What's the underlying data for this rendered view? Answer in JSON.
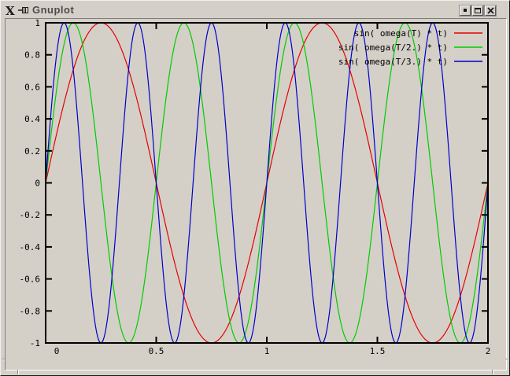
{
  "window": {
    "title": "Gnuplot",
    "controls": [
      {
        "name": "minimize"
      },
      {
        "name": "maximize"
      },
      {
        "name": "close"
      }
    ]
  },
  "chart_data": {
    "type": "line",
    "title": "",
    "xlabel": "",
    "ylabel": "",
    "x_axis": {
      "min": 0,
      "max": 2,
      "ticks": [
        0,
        0.5,
        1,
        1.5,
        2
      ],
      "tick_labels": [
        "0",
        "0.5",
        "1",
        "1.5",
        "2"
      ]
    },
    "y_axis": {
      "min": -1,
      "max": 1,
      "ticks": [
        -1,
        -0.8,
        -0.6,
        -0.4,
        -0.2,
        0,
        0.2,
        0.4,
        0.6,
        0.8,
        1
      ],
      "tick_labels": [
        "-1",
        "-0.8",
        "-0.6",
        "-0.4",
        "-0.2",
        "0",
        "0.2",
        "0.4",
        "0.6",
        "0.8",
        "1"
      ]
    },
    "grid": false,
    "legend": {
      "position": "top-right-inside",
      "entries": [
        "sin( omega(T) * t)",
        "sin( omega(T/2.) * t)",
        "sin( omega(T/3.) * t)"
      ]
    },
    "series": [
      {
        "name": "sin( omega(T) * t)",
        "color": "#e60000",
        "function": "sin(2*pi*t)",
        "cycles_per_x_unit": 1,
        "amplitude": 1,
        "phase": 0
      },
      {
        "name": "sin( omega(T/2.) * t)",
        "color": "#00cc00",
        "function": "sin(4*pi*t)",
        "cycles_per_x_unit": 2,
        "amplitude": 1,
        "phase": 0
      },
      {
        "name": "sin( omega(T/3.) * t)",
        "color": "#0000cc",
        "function": "sin(6*pi*t)",
        "cycles_per_x_unit": 3,
        "amplitude": 1,
        "phase": 0
      }
    ]
  },
  "colors": {
    "window_bg": "#d4d0c8",
    "plot_bg": "#d4d0c8",
    "axis": "#000000",
    "tick_text": "#000000",
    "title_text": "#4c4c4c"
  }
}
